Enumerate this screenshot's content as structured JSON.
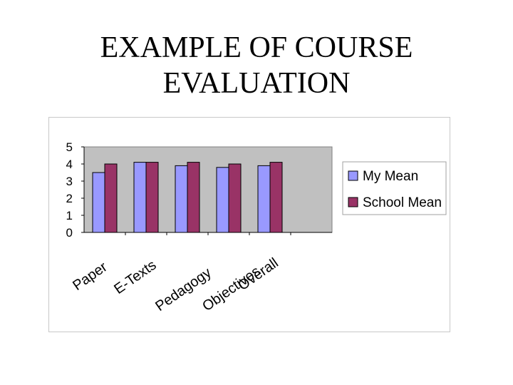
{
  "slide": {
    "title_line1": "EXAMPLE OF COURSE",
    "title_line2": "EVALUATION"
  },
  "chart_data": {
    "type": "bar",
    "categories": [
      "Paper",
      "E-Texts",
      "Pedagogy",
      "Objectives",
      "Overall"
    ],
    "series": [
      {
        "name": "My Mean",
        "values": [
          3.5,
          4.1,
          3.9,
          3.8,
          3.9
        ],
        "color": "#9999ff"
      },
      {
        "name": "School Mean",
        "values": [
          4.0,
          4.1,
          4.1,
          4.0,
          4.1
        ],
        "color": "#993366"
      }
    ],
    "ylim": [
      0,
      5
    ],
    "yticks": [
      0,
      1,
      2,
      3,
      4,
      5
    ],
    "plot_background": "#c0c0c0",
    "legend_position": "right",
    "grid": false
  }
}
